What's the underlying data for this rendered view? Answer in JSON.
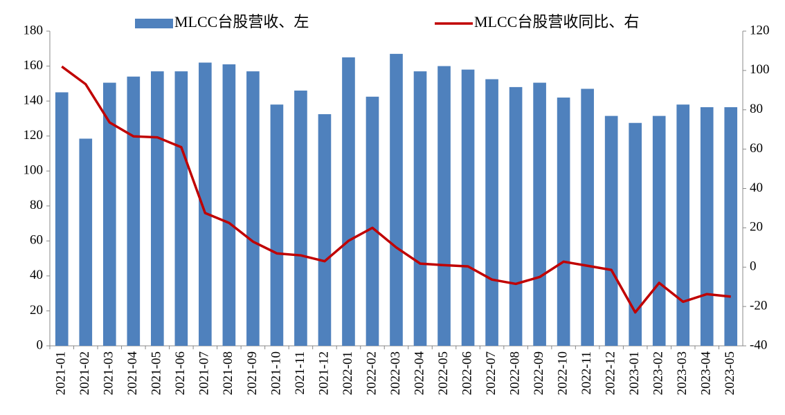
{
  "chart_data": {
    "type": "bar_line",
    "categories": [
      "2021-01",
      "2021-02",
      "2021-03",
      "2021-04",
      "2021-05",
      "2021-06",
      "2021-07",
      "2021-08",
      "2021-09",
      "2021-10",
      "2021-11",
      "2021-12",
      "2022-01",
      "2022-02",
      "2022-03",
      "2022-04",
      "2022-05",
      "2022-06",
      "2022-07",
      "2022-08",
      "2022-09",
      "2022-10",
      "2022-11",
      "2022-12",
      "2023-01",
      "2023-02",
      "2023-03",
      "2023-04",
      "2023-05"
    ],
    "series": [
      {
        "name": "MLCC台股营收、左",
        "type": "bar",
        "color": "#4f81bd",
        "axis": "y",
        "values": [
          145,
          118.5,
          150.5,
          154,
          157,
          157,
          162,
          161,
          157,
          138,
          146,
          132.5,
          165,
          142.5,
          167,
          157,
          160,
          158,
          152.5,
          148,
          150.5,
          142,
          147,
          131.5,
          127.5,
          131.5,
          138,
          136.5,
          136.5
        ]
      },
      {
        "name": "MLCC台股营收同比、右",
        "type": "line",
        "color": "#c00000",
        "axis": "y2",
        "values": [
          102,
          93,
          73.6,
          66.5,
          66,
          61,
          27.5,
          22.5,
          13,
          7,
          6,
          3,
          13.4,
          20,
          10,
          1.8,
          1,
          0.4,
          -6.3,
          -8.5,
          -5,
          2.8,
          0.7,
          -1.4,
          -23,
          -8,
          -17.6,
          -13.7,
          -15
        ]
      }
    ],
    "ylim": [
      0,
      180
    ],
    "yticks": [
      0,
      20,
      40,
      60,
      80,
      100,
      120,
      140,
      160,
      180
    ],
    "y2lim": [
      -40,
      120
    ],
    "y2ticks": [
      -40,
      -20,
      0,
      20,
      40,
      60,
      80,
      100,
      120
    ],
    "legend": "top"
  }
}
